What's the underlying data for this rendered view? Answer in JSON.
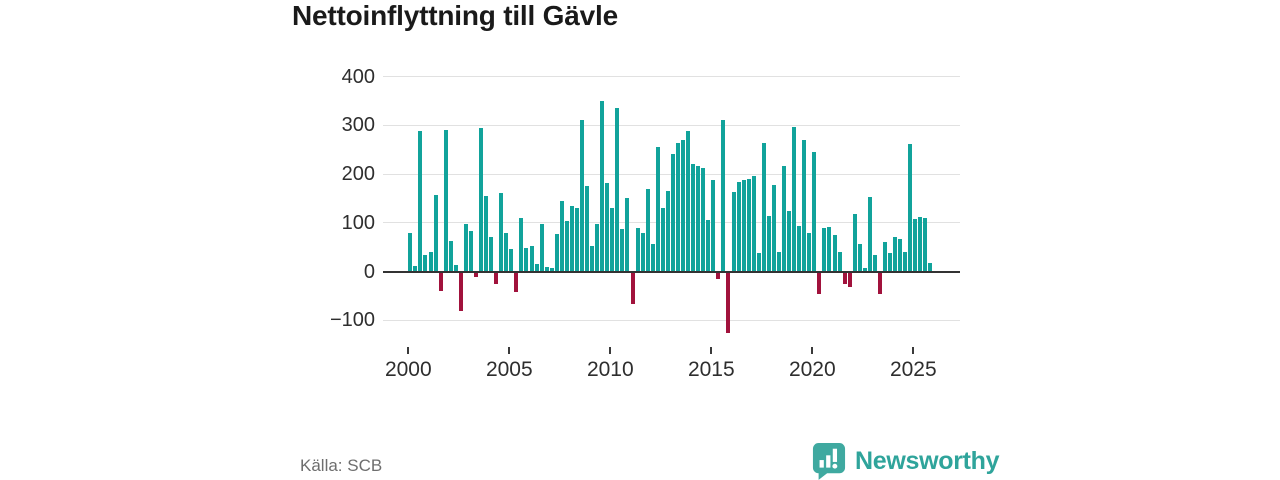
{
  "title": "Nettoinflyttning till Gävle",
  "source": "Källa: SCB",
  "brand": {
    "name": "Newsworthy",
    "color": "#2fa49b",
    "icon": "speech-bubble-bar-chart"
  },
  "colors": {
    "positive_bar": "#11a39b",
    "negative_bar": "#a1123c",
    "grid": "#e1e1e1",
    "zero_axis": "#333333",
    "axis_text": "#2e2e2e",
    "title_text": "#1a1a1a",
    "source_text": "#6e6e6e"
  },
  "chart_data": {
    "type": "bar",
    "title": "Nettoinflyttning till Gävle",
    "xlabel": "",
    "ylabel": "",
    "frequency": "quarterly",
    "start_period": "2000 Q1",
    "end_period": "2025 Q4",
    "yticks": [
      400,
      300,
      200,
      100,
      0,
      -100
    ],
    "xticks": [
      2000,
      2005,
      2010,
      2015,
      2020,
      2025
    ],
    "ylim": [
      -140,
      430
    ],
    "grid": true,
    "legend": false,
    "values": [
      80,
      12,
      288,
      34,
      39,
      157,
      -37,
      290,
      62,
      14,
      -80,
      98,
      83,
      -9,
      295,
      154,
      71,
      -24,
      161,
      78,
      46,
      -39,
      110,
      48,
      52,
      15,
      97,
      10,
      8,
      77,
      145,
      103,
      134,
      130,
      310,
      176,
      52,
      98,
      350,
      181,
      131,
      335,
      88,
      150,
      -65,
      90,
      78,
      170,
      57,
      255,
      131,
      166,
      241,
      264,
      269,
      288,
      221,
      216,
      212,
      105,
      188,
      -14,
      310,
      -125,
      164,
      184,
      188,
      190,
      195,
      38,
      264,
      114,
      177,
      39,
      217,
      124,
      297,
      93,
      269,
      79,
      246,
      -45,
      90,
      92,
      74,
      39,
      -23,
      -30,
      119,
      57,
      7,
      152,
      34,
      -45,
      60,
      38,
      71,
      67,
      39,
      262,
      108,
      112,
      110,
      17
    ]
  }
}
